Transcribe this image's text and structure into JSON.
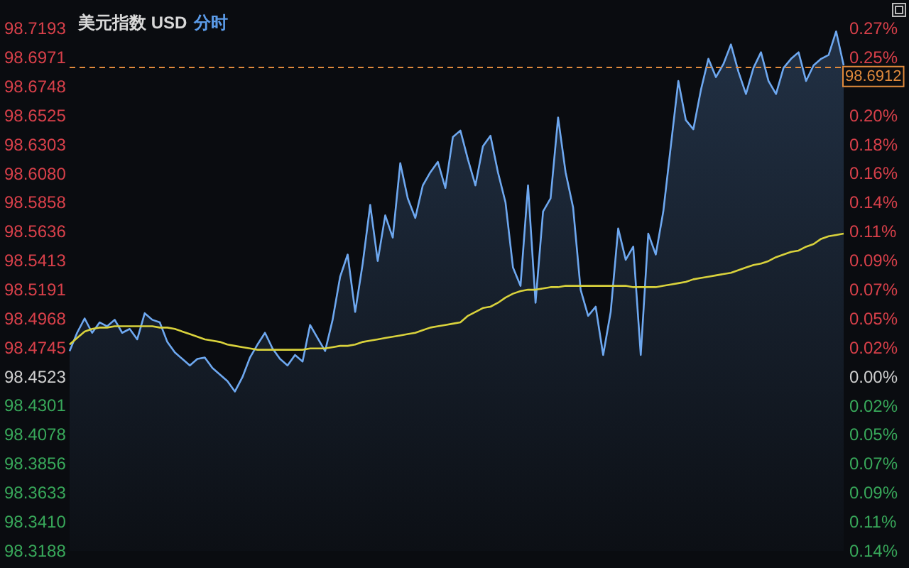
{
  "chart_data": {
    "type": "area",
    "title": "美元指数 USD",
    "subtitle": "分时",
    "categories": [
      null,
      null,
      null,
      null,
      null,
      null,
      null,
      null,
      null,
      null,
      null,
      null,
      null,
      null,
      null,
      null,
      null,
      null,
      null,
      null,
      null,
      null,
      null,
      null,
      null,
      null,
      null,
      null,
      null,
      null,
      null,
      null,
      null,
      null,
      null,
      null,
      null,
      null,
      null,
      null,
      null,
      null,
      null,
      null,
      null,
      null,
      null,
      null,
      null,
      null,
      null,
      null,
      null,
      null,
      null,
      null,
      null,
      null,
      null,
      null,
      null,
      null,
      null,
      null,
      null,
      null,
      null,
      null,
      null,
      null,
      null,
      null,
      null,
      null,
      null,
      null,
      null,
      null,
      null,
      null,
      null,
      null,
      null,
      null,
      null,
      null,
      null,
      null,
      null,
      null,
      null,
      null,
      null,
      null,
      null,
      null,
      null,
      null,
      null,
      null,
      null,
      null,
      null,
      null
    ],
    "series": [
      {
        "color": "#6ea8f0",
        "values": [
          98.472,
          98.486,
          98.497,
          98.486,
          98.494,
          98.491,
          98.496,
          98.486,
          98.489,
          98.481,
          98.501,
          98.496,
          98.494,
          98.479,
          98.471,
          98.466,
          98.461,
          98.466,
          98.467,
          98.459,
          98.454,
          98.449,
          98.441,
          98.452,
          98.467,
          98.477,
          98.486,
          98.474,
          98.466,
          98.461,
          98.469,
          98.464,
          98.492,
          98.482,
          98.472,
          98.496,
          98.529,
          98.546,
          98.502,
          98.539,
          98.584,
          98.541,
          98.576,
          98.559,
          98.616,
          98.589,
          98.574,
          98.599,
          98.609,
          98.617,
          98.597,
          98.636,
          98.641,
          98.619,
          98.599,
          98.629,
          98.637,
          98.609,
          98.586,
          98.536,
          98.522,
          98.599,
          98.509,
          98.579,
          98.589,
          98.651,
          98.609,
          98.582,
          98.519,
          98.499,
          98.506,
          98.469,
          98.502,
          98.566,
          98.542,
          98.552,
          98.469,
          98.562,
          98.546,
          98.579,
          98.629,
          98.679,
          98.649,
          98.642,
          98.672,
          98.696,
          98.682,
          98.692,
          98.707,
          98.686,
          98.669,
          98.689,
          98.701,
          98.679,
          98.669,
          98.689,
          98.696,
          98.701,
          98.679,
          98.691,
          98.696,
          98.699,
          98.717,
          98.691
        ]
      },
      {
        "type": "line",
        "color": "#d9d23c",
        "values": [
          98.477,
          98.482,
          98.487,
          98.489,
          98.49,
          98.49,
          98.491,
          98.491,
          98.491,
          98.491,
          98.491,
          98.491,
          98.49,
          98.49,
          98.489,
          98.487,
          98.485,
          98.483,
          98.481,
          98.48,
          98.479,
          98.477,
          98.476,
          98.475,
          98.474,
          98.473,
          98.473,
          98.473,
          98.473,
          98.473,
          98.473,
          98.473,
          98.474,
          98.474,
          98.474,
          98.475,
          98.476,
          98.476,
          98.477,
          98.479,
          98.48,
          98.481,
          98.482,
          98.483,
          98.484,
          98.485,
          98.486,
          98.488,
          98.49,
          98.491,
          98.492,
          98.493,
          98.494,
          98.499,
          98.502,
          98.505,
          98.506,
          98.509,
          98.513,
          98.516,
          98.518,
          98.519,
          98.519,
          98.52,
          98.521,
          98.521,
          98.522,
          98.522,
          98.522,
          98.522,
          98.522,
          98.522,
          98.522,
          98.522,
          98.522,
          98.521,
          98.521,
          98.521,
          98.521,
          98.522,
          98.523,
          98.524,
          98.525,
          98.527,
          98.528,
          98.529,
          98.53,
          98.531,
          98.532,
          98.534,
          98.536,
          98.538,
          98.539,
          98.541,
          98.544,
          98.546,
          98.548,
          98.549,
          98.552,
          98.554,
          98.558,
          98.56,
          98.561,
          98.562
        ]
      }
    ],
    "ylim": [
      98.3188,
      98.7193
    ],
    "yticks": [
      98.7193,
      98.6971,
      98.6748,
      98.6525,
      98.6303,
      {
        "value": 98.608,
        "label": "98.6080"
      },
      98.5858,
      98.5636,
      98.5413,
      98.5191,
      98.4968,
      98.4745,
      98.4523,
      98.4301,
      98.4078,
      98.3856,
      98.3633,
      {
        "value": 98.341,
        "label": "98.3410"
      },
      98.3188
    ],
    "y2lim": [
      -0.1356,
      0.2712
    ],
    "y2ticks": [
      {
        "value": 0.2712,
        "label": "0.27%"
      },
      {
        "value": 0.2486,
        "label": "0.25%"
      },
      {
        "value": 0.2034,
        "label": "0.20%"
      },
      {
        "value": 0.1808,
        "label": "0.18%"
      },
      {
        "value": 0.1582,
        "label": "0.16%"
      },
      {
        "value": 0.1356,
        "label": "0.14%"
      },
      {
        "value": 0.113,
        "label": "0.11%"
      },
      {
        "value": 0.0904,
        "label": "0.09%"
      },
      {
        "value": 0.0678,
        "label": "0.07%"
      },
      {
        "value": 0.0452,
        "label": "0.05%"
      },
      {
        "value": 0.0226,
        "label": "0.02%"
      },
      {
        "value": 0,
        "label": "0.00%"
      },
      {
        "value": -0.0226,
        "label": "0.02%"
      },
      {
        "value": -0.0452,
        "label": "0.05%"
      },
      {
        "value": -0.0678,
        "label": "0.07%"
      },
      {
        "value": -0.0904,
        "label": "0.09%"
      },
      {
        "value": -0.113,
        "label": "0.11%"
      },
      {
        "value": -0.1356,
        "label": "0.14%"
      }
    ],
    "ref_lines": [
      {
        "axis": "y",
        "value": 98.6912,
        "label": "98.6912",
        "color": "#e08a3c",
        "line_style": "dashed"
      }
    ]
  }
}
